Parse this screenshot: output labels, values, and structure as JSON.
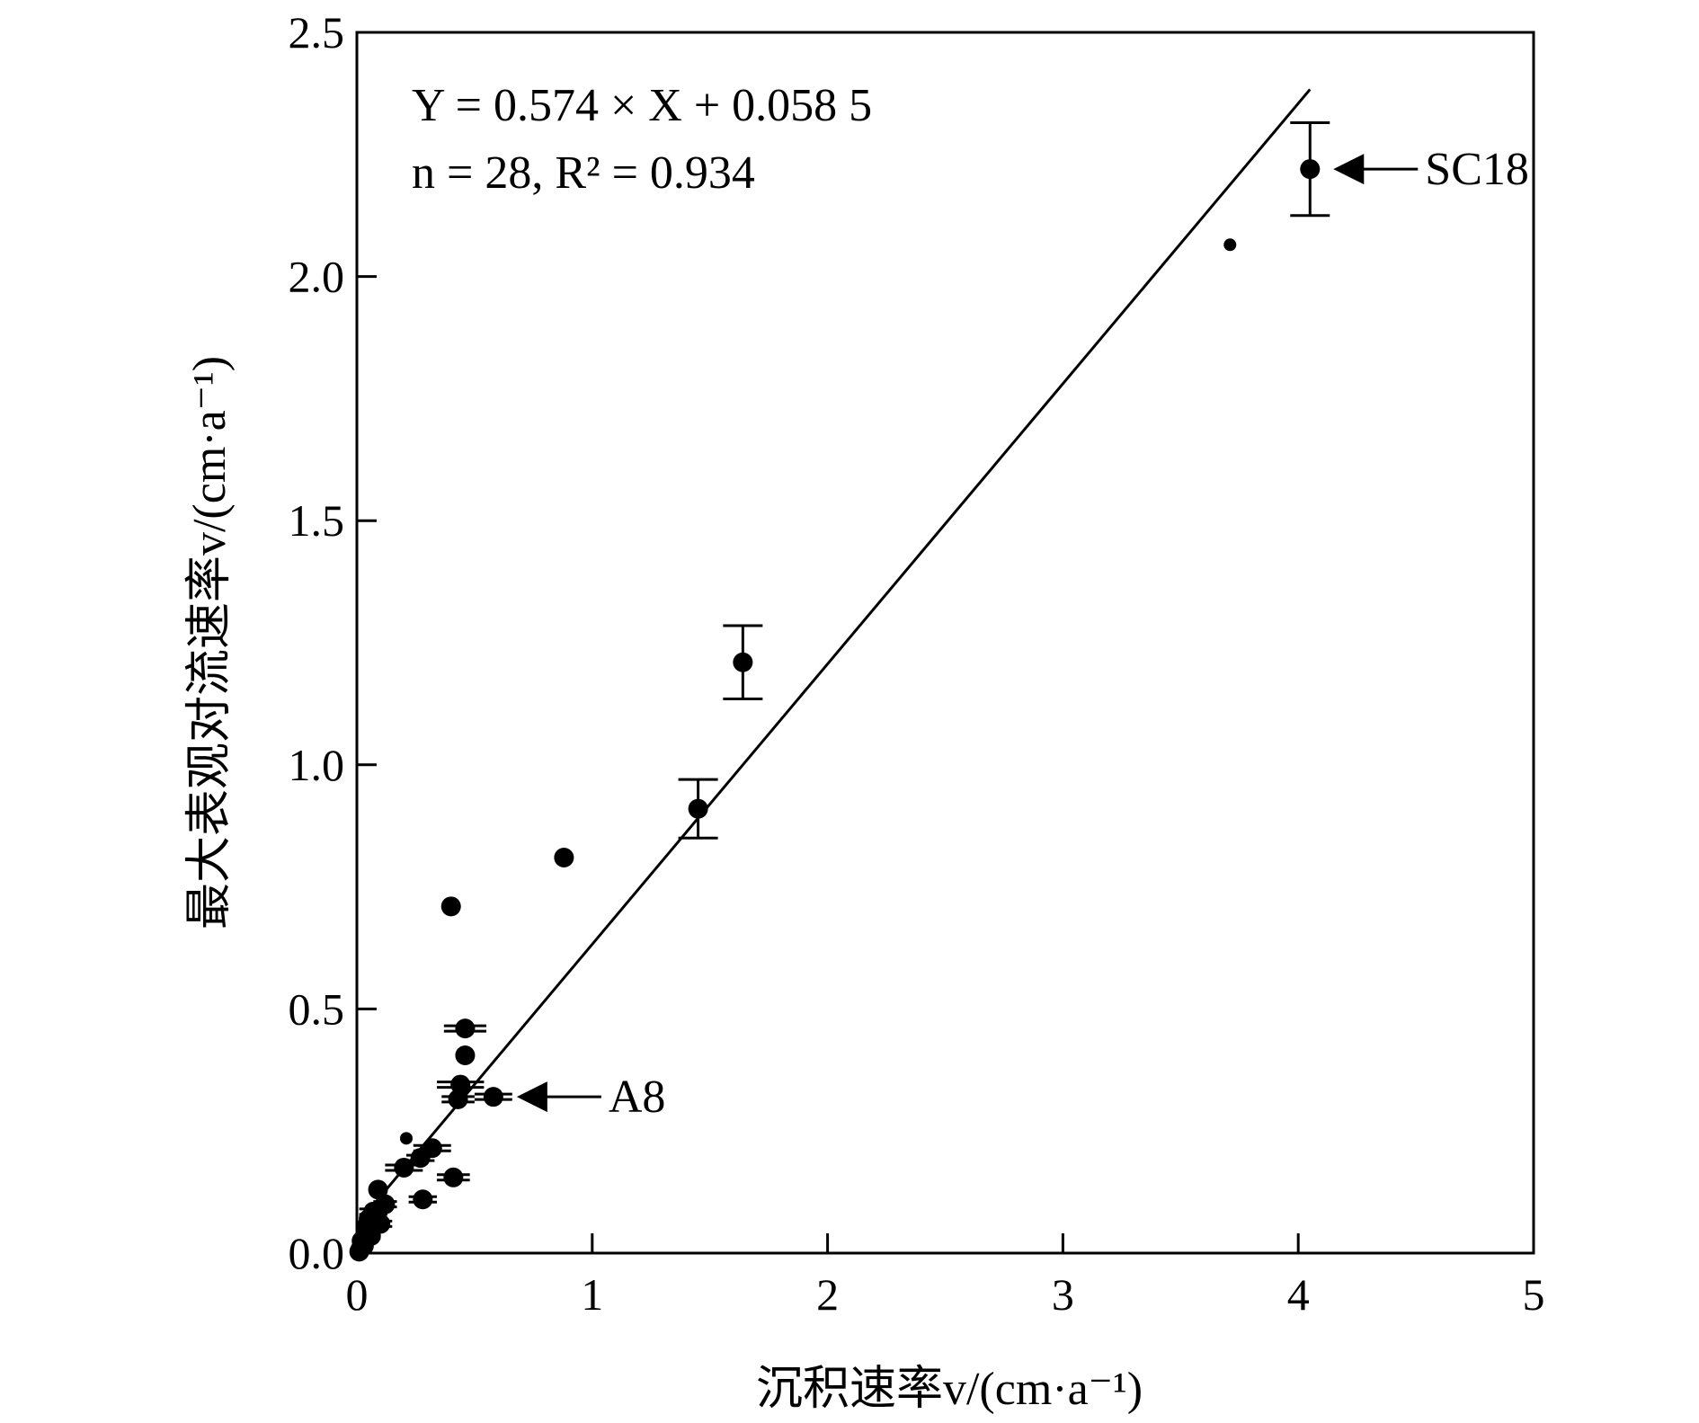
{
  "chart_data": {
    "type": "scatter",
    "xlabel": "沉积速率v/(cm·a⁻¹)",
    "ylabel": "最大表观对流速率v/(cm·a⁻¹)",
    "xlim": [
      0,
      5
    ],
    "ylim": [
      0,
      2.5
    ],
    "xticks": [
      "0",
      "1",
      "2",
      "3",
      "4",
      "5"
    ],
    "yticks": [
      "0.0",
      "0.5",
      "1.0",
      "1.5",
      "2.0",
      "2.5"
    ],
    "grid": false,
    "regression": {
      "equation": "Y = 0.574 × X + 0.058 5",
      "stats": "n = 28, R² = 0.934",
      "slope": 0.574,
      "intercept": 0.0585,
      "x_range": [
        0,
        4.05
      ]
    },
    "points": [
      {
        "x": 4.05,
        "y": 2.22,
        "yerr": 0.095
      },
      {
        "x": 3.71,
        "y": 2.065,
        "size": "small"
      },
      {
        "x": 1.64,
        "y": 1.21,
        "yerr": 0.075
      },
      {
        "x": 1.45,
        "y": 0.91,
        "yerr": 0.06
      },
      {
        "x": 0.88,
        "y": 0.81
      },
      {
        "x": 0.4,
        "y": 0.71
      },
      {
        "x": 0.46,
        "y": 0.46,
        "xerr": 0.09
      },
      {
        "x": 0.46,
        "y": 0.405
      },
      {
        "x": 0.44,
        "y": 0.345,
        "xerr": 0.1
      },
      {
        "x": 0.58,
        "y": 0.32,
        "xerr": 0.08
      },
      {
        "x": 0.43,
        "y": 0.315,
        "xerr": 0.07
      },
      {
        "x": 0.21,
        "y": 0.235,
        "size": "small"
      },
      {
        "x": 0.32,
        "y": 0.215,
        "xerr": 0.08
      },
      {
        "x": 0.27,
        "y": 0.195,
        "xerr": 0.06
      },
      {
        "x": 0.2,
        "y": 0.175,
        "xerr": 0.08
      },
      {
        "x": 0.41,
        "y": 0.155,
        "xerr": 0.07
      },
      {
        "x": 0.09,
        "y": 0.13
      },
      {
        "x": 0.28,
        "y": 0.11,
        "xerr": 0.06
      },
      {
        "x": 0.12,
        "y": 0.1,
        "xerr": 0.05
      },
      {
        "x": 0.07,
        "y": 0.085,
        "xerr": 0.06
      },
      {
        "x": 0.05,
        "y": 0.07,
        "xerr": 0.04
      },
      {
        "x": 0.1,
        "y": 0.06,
        "xerr": 0.05
      },
      {
        "x": 0.04,
        "y": 0.05
      },
      {
        "x": 0.06,
        "y": 0.035,
        "xerr": 0.04
      },
      {
        "x": 0.02,
        "y": 0.025
      },
      {
        "x": 0.03,
        "y": 0.015
      },
      {
        "x": 0.015,
        "y": 0.008
      },
      {
        "x": 0.01,
        "y": 0.003
      }
    ],
    "annotations": [
      {
        "label": "SC18",
        "x": 4.05,
        "y": 2.22
      },
      {
        "label": "A8",
        "x": 0.58,
        "y": 0.32
      }
    ]
  }
}
